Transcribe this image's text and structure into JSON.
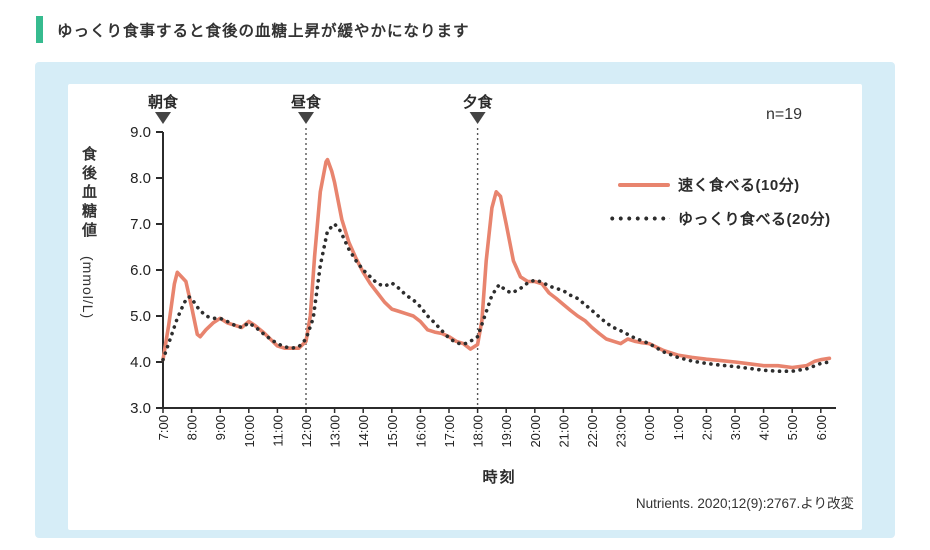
{
  "page": {
    "title": "ゆっくり食事すると食後の血糖上昇が緩やかになります",
    "accent_color": "#36bb8f",
    "card_bg": "#d6edf7"
  },
  "chart_data": {
    "type": "line",
    "n_label": "n=19",
    "x_title": "時刻",
    "y_title": "食後血糖値",
    "y_unit": "(mmol/L)",
    "source": "Nutrients. 2020;12(9):2767.より改変",
    "ylim": [
      3.0,
      9.0
    ],
    "grid": false,
    "legend_position": "upper right",
    "y_ticks": [
      "9.0",
      "8.0",
      "7.0",
      "6.0",
      "5.0",
      "4.0",
      "3.0"
    ],
    "x_ticks": [
      "7:00",
      "8:00",
      "9:00",
      "10:00",
      "11:00",
      "12:00",
      "13:00",
      "14:00",
      "15:00",
      "16:00",
      "17:00",
      "18:00",
      "19:00",
      "20:00",
      "21:00",
      "22:00",
      "23:00",
      "0:00",
      "1:00",
      "2:00",
      "3:00",
      "4:00",
      "5:00",
      "6:00"
    ],
    "meals": [
      {
        "label": "朝食",
        "hour_offset": 0
      },
      {
        "label": "昼食",
        "hour_offset": 5
      },
      {
        "label": "夕食",
        "hour_offset": 11
      }
    ],
    "series": [
      {
        "name": "速く食べる(10分)",
        "style": "solid",
        "color": "#e8846e",
        "points": [
          [
            0,
            4.05
          ],
          [
            0.2,
            4.8
          ],
          [
            0.4,
            5.7
          ],
          [
            0.5,
            5.95
          ],
          [
            0.65,
            5.85
          ],
          [
            0.8,
            5.75
          ],
          [
            1,
            5.2
          ],
          [
            1.2,
            4.6
          ],
          [
            1.3,
            4.55
          ],
          [
            1.5,
            4.7
          ],
          [
            1.75,
            4.85
          ],
          [
            2,
            4.95
          ],
          [
            2.25,
            4.85
          ],
          [
            2.5,
            4.8
          ],
          [
            2.75,
            4.75
          ],
          [
            3,
            4.88
          ],
          [
            3.2,
            4.8
          ],
          [
            3.5,
            4.65
          ],
          [
            3.75,
            4.5
          ],
          [
            4,
            4.35
          ],
          [
            4.25,
            4.3
          ],
          [
            4.5,
            4.3
          ],
          [
            4.75,
            4.3
          ],
          [
            5,
            4.45
          ],
          [
            5.15,
            5.0
          ],
          [
            5.3,
            6.3
          ],
          [
            5.5,
            7.7
          ],
          [
            5.7,
            8.35
          ],
          [
            5.75,
            8.4
          ],
          [
            5.9,
            8.15
          ],
          [
            6,
            7.9
          ],
          [
            6.25,
            7.1
          ],
          [
            6.5,
            6.6
          ],
          [
            6.75,
            6.25
          ],
          [
            7,
            5.95
          ],
          [
            7.25,
            5.7
          ],
          [
            7.5,
            5.5
          ],
          [
            7.75,
            5.3
          ],
          [
            8,
            5.15
          ],
          [
            8.25,
            5.1
          ],
          [
            8.5,
            5.05
          ],
          [
            8.75,
            5.0
          ],
          [
            9,
            4.88
          ],
          [
            9.25,
            4.7
          ],
          [
            9.5,
            4.65
          ],
          [
            9.75,
            4.62
          ],
          [
            10,
            4.55
          ],
          [
            10.25,
            4.45
          ],
          [
            10.5,
            4.4
          ],
          [
            10.75,
            4.28
          ],
          [
            11,
            4.38
          ],
          [
            11.15,
            4.9
          ],
          [
            11.3,
            6.2
          ],
          [
            11.5,
            7.35
          ],
          [
            11.65,
            7.7
          ],
          [
            11.8,
            7.6
          ],
          [
            12,
            7.0
          ],
          [
            12.25,
            6.2
          ],
          [
            12.5,
            5.85
          ],
          [
            12.75,
            5.75
          ],
          [
            13,
            5.75
          ],
          [
            13.25,
            5.7
          ],
          [
            13.5,
            5.5
          ],
          [
            13.75,
            5.38
          ],
          [
            14,
            5.25
          ],
          [
            14.25,
            5.12
          ],
          [
            14.5,
            5.0
          ],
          [
            14.75,
            4.9
          ],
          [
            15,
            4.75
          ],
          [
            15.25,
            4.62
          ],
          [
            15.5,
            4.5
          ],
          [
            15.75,
            4.45
          ],
          [
            16,
            4.4
          ],
          [
            16.25,
            4.5
          ],
          [
            16.5,
            4.45
          ],
          [
            16.75,
            4.42
          ],
          [
            17,
            4.4
          ],
          [
            17.5,
            4.25
          ],
          [
            18,
            4.15
          ],
          [
            18.5,
            4.1
          ],
          [
            19,
            4.06
          ],
          [
            19.5,
            4.03
          ],
          [
            20,
            4.0
          ],
          [
            20.5,
            3.96
          ],
          [
            21,
            3.92
          ],
          [
            21.5,
            3.92
          ],
          [
            22,
            3.88
          ],
          [
            22.5,
            3.92
          ],
          [
            22.8,
            4.02
          ],
          [
            23,
            4.05
          ],
          [
            23.3,
            4.08
          ]
        ]
      },
      {
        "name": "ゆっくり食べる(20分)",
        "style": "dotted",
        "color": "#2d2d2d",
        "points": [
          [
            0,
            4.05
          ],
          [
            0.25,
            4.5
          ],
          [
            0.5,
            4.95
          ],
          [
            0.75,
            5.3
          ],
          [
            0.9,
            5.42
          ],
          [
            1,
            5.38
          ],
          [
            1.25,
            5.15
          ],
          [
            1.5,
            5.0
          ],
          [
            1.75,
            4.95
          ],
          [
            2,
            4.95
          ],
          [
            2.25,
            4.88
          ],
          [
            2.5,
            4.8
          ],
          [
            2.75,
            4.75
          ],
          [
            3,
            4.85
          ],
          [
            3.25,
            4.75
          ],
          [
            3.5,
            4.62
          ],
          [
            3.75,
            4.5
          ],
          [
            4,
            4.4
          ],
          [
            4.25,
            4.33
          ],
          [
            4.5,
            4.3
          ],
          [
            4.75,
            4.33
          ],
          [
            5,
            4.5
          ],
          [
            5.25,
            4.95
          ],
          [
            5.5,
            6.1
          ],
          [
            5.75,
            6.85
          ],
          [
            6,
            7.0
          ],
          [
            6.2,
            6.85
          ],
          [
            6.5,
            6.45
          ],
          [
            6.75,
            6.2
          ],
          [
            7,
            6.0
          ],
          [
            7.25,
            5.85
          ],
          [
            7.5,
            5.7
          ],
          [
            7.75,
            5.65
          ],
          [
            8,
            5.72
          ],
          [
            8.25,
            5.6
          ],
          [
            8.5,
            5.45
          ],
          [
            8.75,
            5.35
          ],
          [
            9,
            5.2
          ],
          [
            9.25,
            5.0
          ],
          [
            9.5,
            4.85
          ],
          [
            9.75,
            4.68
          ],
          [
            10,
            4.52
          ],
          [
            10.25,
            4.42
          ],
          [
            10.5,
            4.38
          ],
          [
            10.75,
            4.45
          ],
          [
            11,
            4.55
          ],
          [
            11.25,
            5.0
          ],
          [
            11.5,
            5.45
          ],
          [
            11.75,
            5.68
          ],
          [
            12,
            5.55
          ],
          [
            12.2,
            5.5
          ],
          [
            12.5,
            5.6
          ],
          [
            12.75,
            5.72
          ],
          [
            13,
            5.78
          ],
          [
            13.25,
            5.74
          ],
          [
            13.5,
            5.65
          ],
          [
            13.75,
            5.6
          ],
          [
            14,
            5.55
          ],
          [
            14.25,
            5.45
          ],
          [
            14.5,
            5.38
          ],
          [
            14.75,
            5.25
          ],
          [
            15,
            5.12
          ],
          [
            15.25,
            4.98
          ],
          [
            15.5,
            4.85
          ],
          [
            15.75,
            4.75
          ],
          [
            16,
            4.68
          ],
          [
            16.25,
            4.6
          ],
          [
            16.5,
            4.52
          ],
          [
            17,
            4.4
          ],
          [
            17.5,
            4.22
          ],
          [
            18,
            4.1
          ],
          [
            18.5,
            4.02
          ],
          [
            19,
            3.97
          ],
          [
            19.5,
            3.93
          ],
          [
            20,
            3.9
          ],
          [
            20.5,
            3.86
          ],
          [
            21,
            3.82
          ],
          [
            21.5,
            3.8
          ],
          [
            22,
            3.8
          ],
          [
            22.5,
            3.85
          ],
          [
            22.8,
            3.92
          ],
          [
            23,
            3.97
          ],
          [
            23.3,
            4.0
          ]
        ]
      }
    ]
  }
}
